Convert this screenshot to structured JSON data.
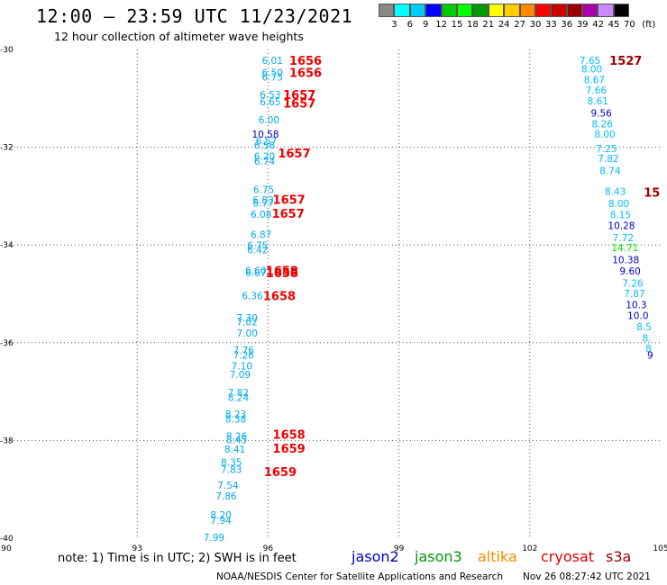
{
  "header": {
    "title": "12:00 — 23:59 UTC 11/23/2021",
    "subtitle": "12 hour collection of altimeter wave heights"
  },
  "color_scale": {
    "colors": [
      "#888888",
      "#00ffff",
      "#00ccff",
      "#0000ff",
      "#00cc00",
      "#00ff00",
      "#009900",
      "#ffff00",
      "#ffcc00",
      "#ff8800",
      "#ff0000",
      "#cc0000",
      "#990000",
      "#aa00aa",
      "#cc88ff",
      "#000000"
    ],
    "labels": [
      "3",
      "6",
      "9",
      "12",
      "15",
      "18",
      "21",
      "24",
      "27",
      "30",
      "33",
      "36",
      "39",
      "42",
      "45",
      "70",
      "(ft)"
    ]
  },
  "map": {
    "lon_ticks": [
      "90",
      "93",
      "96",
      "99",
      "102",
      "105"
    ],
    "lat_ticks": [
      "-30",
      "-32",
      "-34",
      "-36",
      "-38",
      "-40"
    ],
    "track_left": [
      {
        "v": "6.01",
        "lon": 96.1,
        "lat": -30.22
      },
      {
        "v": "6.50",
        "lon": 96.1,
        "lat": -30.47
      },
      {
        "v": "6.75",
        "lon": 96.1,
        "lat": -30.56
      },
      {
        "v": "6.53",
        "lon": 96.05,
        "lat": -30.92
      },
      {
        "v": "6.65",
        "lon": 96.05,
        "lat": -31.07
      },
      {
        "v": "6.00",
        "lon": 96.02,
        "lat": -31.44
      },
      {
        "v": "10.58",
        "lon": 95.94,
        "lat": -31.73
      },
      {
        "v": "6.57",
        "lon": 95.96,
        "lat": -31.87
      },
      {
        "v": "6.56",
        "lon": 95.92,
        "lat": -31.96
      },
      {
        "v": "6.20",
        "lon": 95.92,
        "lat": -32.18
      },
      {
        "v": "6.74",
        "lon": 95.92,
        "lat": -32.28
      },
      {
        "v": "6.75",
        "lon": 95.9,
        "lat": -32.86
      },
      {
        "v": "6.83",
        "lon": 95.89,
        "lat": -33.08
      },
      {
        "v": "6.77",
        "lon": 95.89,
        "lat": -33.14
      },
      {
        "v": "6.08",
        "lon": 95.84,
        "lat": -33.37
      },
      {
        "v": "6.87",
        "lon": 95.84,
        "lat": -33.78
      },
      {
        "v": "6.75",
        "lon": 95.76,
        "lat": -34.01
      },
      {
        "v": "6.42",
        "lon": 95.76,
        "lat": -34.1
      },
      {
        "v": "6.60",
        "lon": 95.72,
        "lat": -34.52
      },
      {
        "v": "6.67",
        "lon": 95.72,
        "lat": -34.57
      },
      {
        "v": "6.36",
        "lon": 95.64,
        "lat": -35.04
      },
      {
        "v": "7.30",
        "lon": 95.52,
        "lat": -35.49
      },
      {
        "v": "7.02",
        "lon": 95.52,
        "lat": -35.57
      },
      {
        "v": "7.00",
        "lon": 95.52,
        "lat": -35.8
      },
      {
        "v": "7.76",
        "lon": 95.44,
        "lat": -36.15
      },
      {
        "v": "7.26",
        "lon": 95.44,
        "lat": -36.25
      },
      {
        "v": "7.10",
        "lon": 95.4,
        "lat": -36.47
      },
      {
        "v": "7.09",
        "lon": 95.36,
        "lat": -36.65
      },
      {
        "v": "7.82",
        "lon": 95.32,
        "lat": -37.02
      },
      {
        "v": "8.24",
        "lon": 95.32,
        "lat": -37.12
      },
      {
        "v": "8.23",
        "lon": 95.26,
        "lat": -37.46
      },
      {
        "v": "8.38",
        "lon": 95.26,
        "lat": -37.56
      },
      {
        "v": "8.26",
        "lon": 95.28,
        "lat": -37.91
      },
      {
        "v": "8.45",
        "lon": 95.28,
        "lat": -37.98
      },
      {
        "v": "8.41",
        "lon": 95.24,
        "lat": -38.18
      },
      {
        "v": "8.35",
        "lon": 95.16,
        "lat": -38.44
      },
      {
        "v": "7.83",
        "lon": 95.16,
        "lat": -38.59
      },
      {
        "v": "7.54",
        "lon": 95.08,
        "lat": -38.91
      },
      {
        "v": "7.86",
        "lon": 95.04,
        "lat": -39.13
      },
      {
        "v": "8.20",
        "lon": 94.92,
        "lat": -39.52
      },
      {
        "v": "7.94",
        "lon": 94.92,
        "lat": -39.63
      },
      {
        "v": "7.99",
        "lon": 94.76,
        "lat": -39.98
      }
    ],
    "time_left": [
      {
        "t": "1656",
        "lon": 96.86,
        "lat": -30.22
      },
      {
        "t": "1656",
        "lon": 96.86,
        "lat": -30.47
      },
      {
        "t": "1657",
        "lon": 96.72,
        "lat": -30.92
      },
      {
        "t": "1657",
        "lon": 96.72,
        "lat": -31.1
      },
      {
        "t": "1657",
        "lon": 96.6,
        "lat": -32.12
      },
      {
        "t": "1657",
        "lon": 96.48,
        "lat": -33.07
      },
      {
        "t": "1657",
        "lon": 96.46,
        "lat": -33.35
      },
      {
        "t": "1658",
        "lon": 96.32,
        "lat": -34.52
      },
      {
        "t": "1658",
        "lon": 96.32,
        "lat": -34.57
      },
      {
        "t": "1658",
        "lon": 96.26,
        "lat": -35.04
      },
      {
        "t": "1658",
        "lon": 96.48,
        "lat": -37.87
      },
      {
        "t": "1659",
        "lon": 96.48,
        "lat": -38.16
      },
      {
        "t": "1659",
        "lon": 96.28,
        "lat": -38.64
      }
    ],
    "track_right": [
      {
        "v": "7.65",
        "c": "#00bbff",
        "lon": 103.38,
        "lat": -30.22
      },
      {
        "v": "8.00",
        "c": "#00bbff",
        "lon": 103.42,
        "lat": -30.4
      },
      {
        "v": "8.67",
        "c": "#00bbff",
        "lon": 103.48,
        "lat": -30.62
      },
      {
        "v": "7.66",
        "c": "#00bbff",
        "lon": 103.52,
        "lat": -30.83
      },
      {
        "v": "8.61",
        "c": "#00bbff",
        "lon": 103.56,
        "lat": -31.05
      },
      {
        "v": "9.56",
        "c": "#0000cc",
        "lon": 103.64,
        "lat": -31.3
      },
      {
        "v": "8.26",
        "c": "#00bbff",
        "lon": 103.66,
        "lat": -31.52
      },
      {
        "v": "8.00",
        "c": "#00bbff",
        "lon": 103.72,
        "lat": -31.73
      },
      {
        "v": "7.25",
        "c": "#00bbff",
        "lon": 103.76,
        "lat": -32.03
      },
      {
        "v": "7.82",
        "c": "#00bbff",
        "lon": 103.8,
        "lat": -32.23
      },
      {
        "v": "8.74",
        "c": "#00bbff",
        "lon": 103.84,
        "lat": -32.48
      },
      {
        "v": "8.43",
        "c": "#00bbff",
        "lon": 103.96,
        "lat": -32.9
      },
      {
        "v": "8.00",
        "c": "#00bbff",
        "lon": 104.04,
        "lat": -33.15
      },
      {
        "v": "8.15",
        "c": "#00bbff",
        "lon": 104.08,
        "lat": -33.38
      },
      {
        "v": "10.28",
        "c": "#0000cc",
        "lon": 104.1,
        "lat": -33.6
      },
      {
        "v": "7.72",
        "c": "#00bbff",
        "lon": 104.14,
        "lat": -33.85
      },
      {
        "v": "14.71",
        "c": "#00ee00",
        "lon": 104.18,
        "lat": -34.05
      },
      {
        "v": "10.38",
        "c": "#0000cc",
        "lon": 104.2,
        "lat": -34.3
      },
      {
        "v": "9.60",
        "c": "#0000cc",
        "lon": 104.3,
        "lat": -34.53
      },
      {
        "v": "7.26",
        "c": "#00bbff",
        "lon": 104.36,
        "lat": -34.78
      },
      {
        "v": "7.87",
        "c": "#00bbff",
        "lon": 104.4,
        "lat": -34.99
      },
      {
        "v": "10.3",
        "c": "#0000cc",
        "lon": 104.44,
        "lat": -35.22
      },
      {
        "v": "10.0",
        "c": "#0000cc",
        "lon": 104.48,
        "lat": -35.44
      },
      {
        "v": "8.5",
        "c": "#00bbff",
        "lon": 104.62,
        "lat": -35.67
      },
      {
        "v": "8.",
        "c": "#00bbff",
        "lon": 104.68,
        "lat": -35.9
      },
      {
        "v": "8",
        "c": "#00bbff",
        "lon": 104.72,
        "lat": -36.11
      },
      {
        "v": "9",
        "c": "#0000cc",
        "lon": 104.76,
        "lat": -36.25
      }
    ],
    "time_right": [
      {
        "t": "1527",
        "c": "#990000",
        "lon": 104.2,
        "lat": -30.22
      },
      {
        "t": "15",
        "c": "#990000",
        "lon": 104.8,
        "lat": -32.92
      }
    ]
  },
  "note": "note:  1) Time is in UTC;  2) SWH is in feet",
  "legend": {
    "jason2": {
      "label": "jason2",
      "color": "#0000cc"
    },
    "jason3": {
      "label": "jason3",
      "color": "#009900"
    },
    "altika": {
      "label": "altika",
      "color": "#ff8800"
    },
    "cryosat": {
      "label": "cryosat",
      "color": "#dd0000"
    },
    "s3a": {
      "label": "s3a",
      "color": "#990000"
    }
  },
  "footer": {
    "credit": "NOAA/NESDIS Center for Satellite Applications and Research",
    "timestamp": "Nov 26 08:27:42 UTC 2021"
  }
}
